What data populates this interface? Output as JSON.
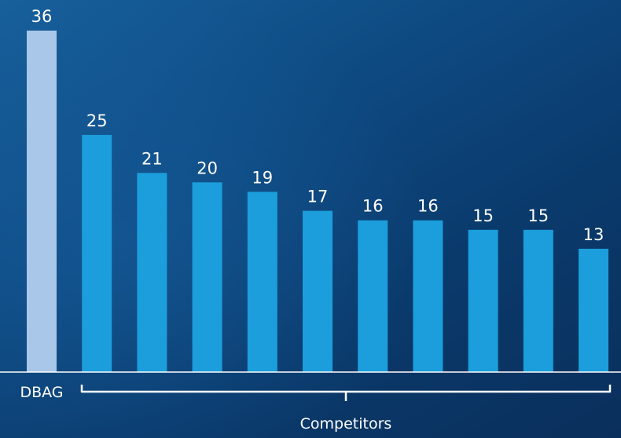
{
  "chart_data": {
    "type": "bar",
    "categories": [
      "DBAG",
      "",
      "",
      "",
      "",
      "",
      "",
      "",
      "",
      "",
      ""
    ],
    "values": [
      36,
      25,
      21,
      20,
      19,
      17,
      16,
      16,
      15,
      15,
      13
    ],
    "group_label": "Competitors",
    "ylim": [
      0,
      36
    ],
    "grid": false,
    "colors": {
      "highlight": "#a9c7e8",
      "bar": "#1b9edb",
      "text": "#ffffff",
      "axis": "#ffffff"
    }
  }
}
